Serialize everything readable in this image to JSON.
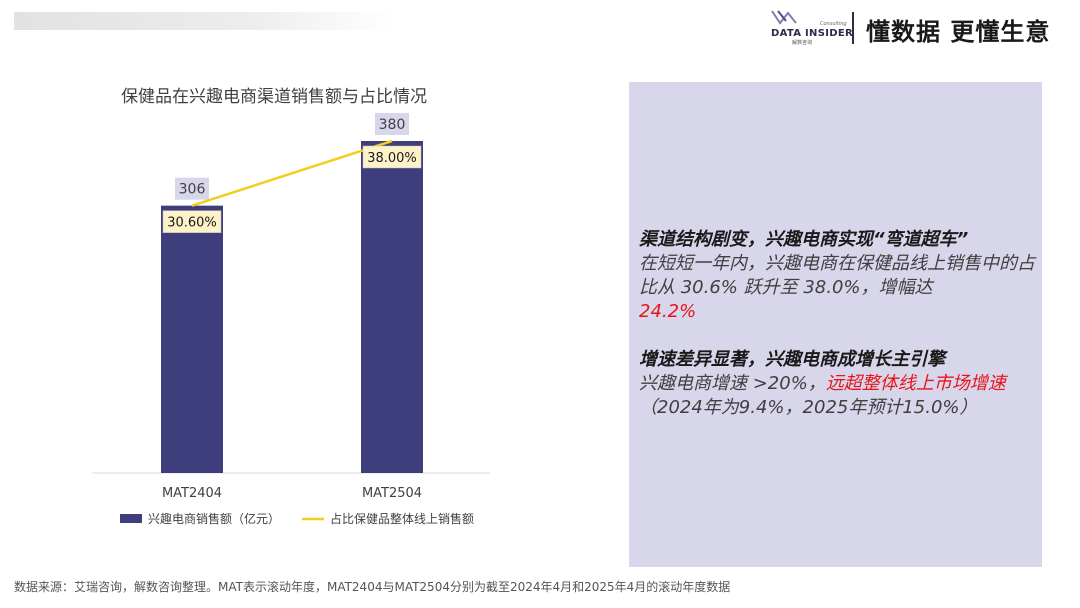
{
  "brand": {
    "logo_name": "DATA INSIDER",
    "logo_sub": "解数咨询",
    "logo_tag": "Consulting",
    "slogan": "懂数据 更懂生意"
  },
  "chart_data": {
    "type": "bar",
    "title": "保健品在兴趣电商渠道销售额与占比情况",
    "categories": [
      "MAT2404",
      "MAT2504"
    ],
    "series": [
      {
        "name": "兴趣电商销售额（亿元）",
        "type": "bar",
        "values": [
          306,
          380
        ],
        "labels": [
          "306",
          "380"
        ],
        "color": "#3f3e7d"
      },
      {
        "name": "占比保健品整体线上销售额",
        "type": "line",
        "values": [
          30.6,
          38.0
        ],
        "labels": [
          "30.60%",
          "38.00%"
        ],
        "color": "#f2cd1d"
      }
    ],
    "legend_position": "bottom",
    "grid": false
  },
  "insights": {
    "block1": {
      "heading": "渠道结构剧变，兴趣电商实现“弯道超车”",
      "text": "在短短一年内，兴趣电商在保健品线上销售中的占比从 30.6% 跃升至 38.0%，增幅达",
      "highlight": "24.2%"
    },
    "block2": {
      "heading": "增速差异显著，兴趣电商成增长主引擎",
      "text_pre": "兴趣电商增速 >20%，",
      "highlight": "远超整体线上市场增速",
      "text_post": "（2024年为9.4%，2025年预计15.0%）"
    }
  },
  "footnote": "数据来源：艾瑞咨询，解数咨询整理。MAT表示滚动年度，MAT2404与MAT2504分别为截至2024年4月和2025年4月的滚动年度数据"
}
